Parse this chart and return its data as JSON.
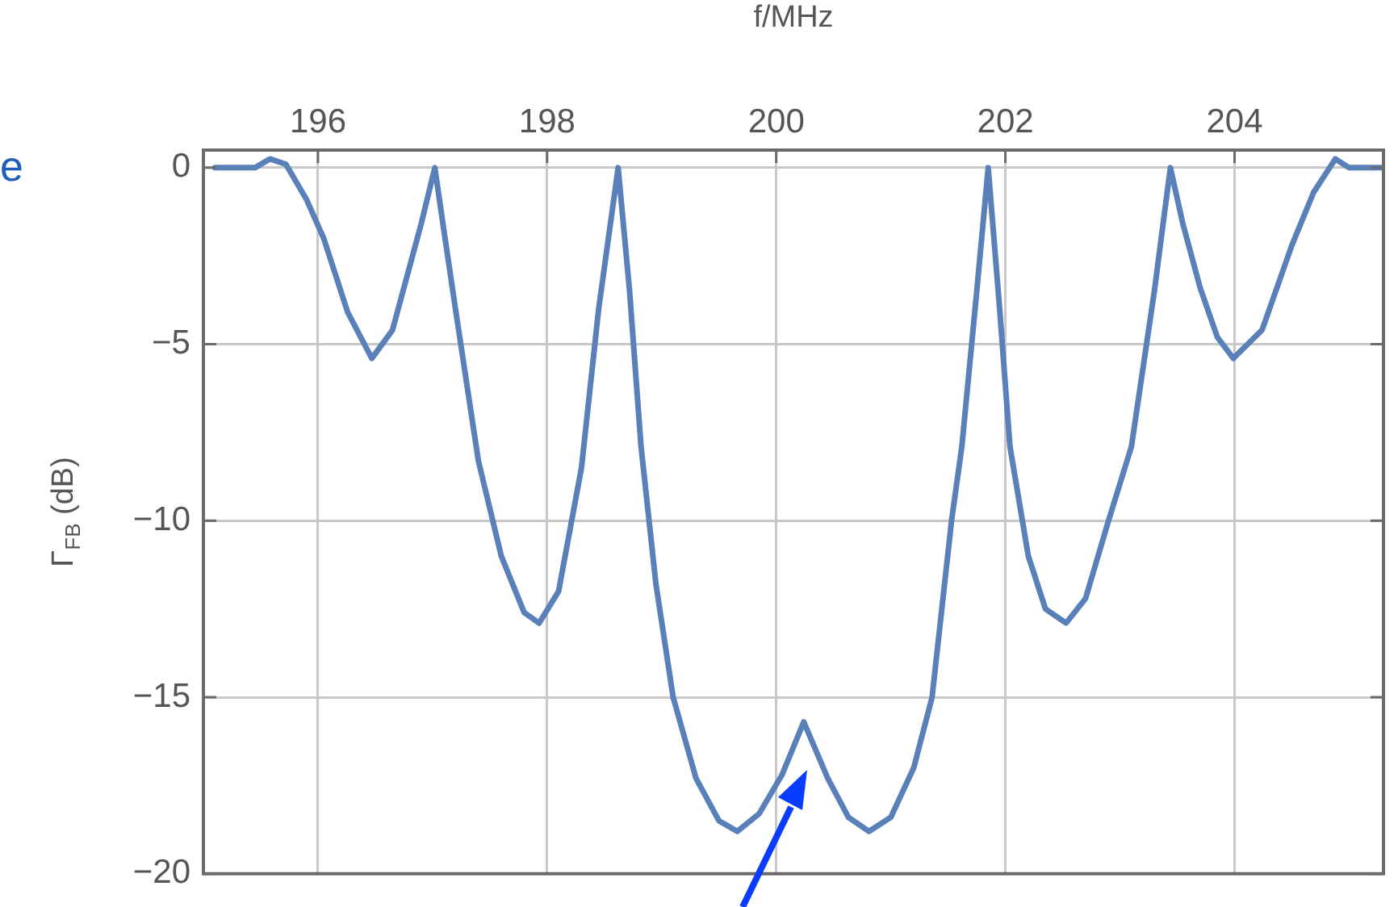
{
  "chart_data": {
    "type": "line",
    "xlabel": "f/MHz",
    "ylabel": "Γ$_{FB}$ (dB)",
    "annotations": [
      "e"
    ],
    "series": [
      {
        "color": "#5a80b9",
        "x": [
          195.1,
          195.45,
          195.58,
          195.72,
          195.9,
          196.05,
          196.26,
          196.47,
          196.65,
          196.75,
          196.9,
          197.02,
          197.1,
          197.2,
          197.4,
          197.6,
          197.8,
          197.93,
          198.1,
          198.3,
          198.45,
          198.62,
          198.72,
          198.82,
          198.95,
          199.1,
          199.3,
          199.5,
          199.66,
          199.85,
          200.05,
          200.24,
          200.45,
          200.63,
          200.81,
          201.0,
          201.2,
          201.36,
          201.53,
          201.62,
          201.75,
          201.85,
          201.95,
          202.04,
          202.2,
          202.35,
          202.53,
          202.7,
          202.9,
          203.1,
          203.3,
          203.44,
          203.55,
          203.7,
          203.85,
          203.99,
          204.24,
          204.5,
          204.69,
          204.88,
          205.0,
          205.28
        ],
        "values": [
          0,
          0,
          0.25,
          0.1,
          -0.9,
          -2,
          -4.1,
          -5.4,
          -4.6,
          -3.4,
          -1.6,
          0,
          -1.8,
          -4,
          -8.3,
          -11,
          -12.6,
          -12.9,
          -12,
          -8.5,
          -4,
          0,
          -3.5,
          -7.9,
          -11.8,
          -15,
          -17.3,
          -18.5,
          -18.8,
          -18.3,
          -17.2,
          -15.7,
          -17.3,
          -18.4,
          -18.8,
          -18.4,
          -17,
          -15,
          -10,
          -7.9,
          -3.5,
          0,
          -4,
          -7.9,
          -11,
          -12.5,
          -12.9,
          -12.2,
          -10,
          -7.9,
          -3.5,
          0,
          -1.6,
          -3.4,
          -4.8,
          -5.4,
          -4.6,
          -2.2,
          -0.7,
          0.25,
          0,
          0
        ]
      }
    ],
    "xlim": [
      195,
      205.3
    ],
    "xticks": [
      196,
      198,
      200,
      202,
      204
    ],
    "ylim": [
      -20,
      0.5
    ],
    "yticks": [
      {
        "value": -20,
        "label": "−20"
      },
      {
        "value": -15,
        "label": "−15"
      },
      {
        "value": -10,
        "label": "−10"
      },
      {
        "value": -5,
        "label": "−5"
      },
      {
        "value": 0,
        "label": "0"
      }
    ],
    "grid": true,
    "legend": false,
    "marker": "none",
    "line_style": "solid"
  }
}
